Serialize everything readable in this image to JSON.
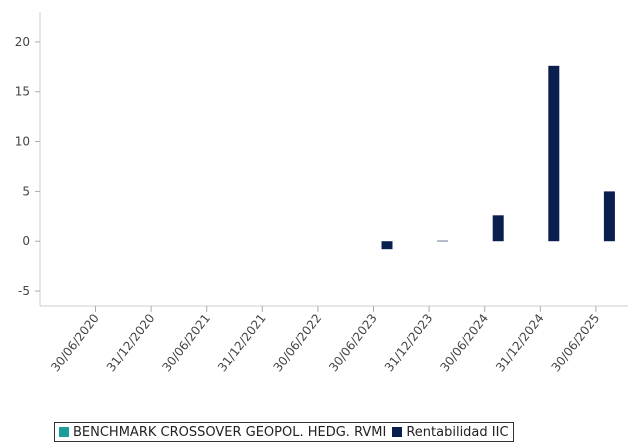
{
  "chart_data": {
    "type": "bar",
    "categories": [
      "30/06/2020",
      "31/12/2020",
      "30/06/2021",
      "31/12/2021",
      "30/06/2022",
      "30/06/2023",
      "31/12/2023",
      "30/06/2024",
      "31/12/2024",
      "30/06/2025"
    ],
    "series": [
      {
        "name": "BENCHMARK CROSSOVER GEOPOL. HEDG. RVMI",
        "color": "#1a9e96",
        "values": [
          null,
          null,
          null,
          null,
          null,
          null,
          null,
          null,
          null,
          null
        ]
      },
      {
        "name": "Rentabilidad IIC",
        "color": "#0b1f4f",
        "values": [
          null,
          null,
          null,
          null,
          null,
          -0.8,
          0.05,
          2.6,
          17.6,
          5.0
        ]
      }
    ],
    "yticks": [
      -5,
      0,
      5,
      10,
      15,
      20
    ],
    "ylim": [
      -6.5,
      23
    ],
    "grid": false,
    "legend_position": "bottom"
  }
}
